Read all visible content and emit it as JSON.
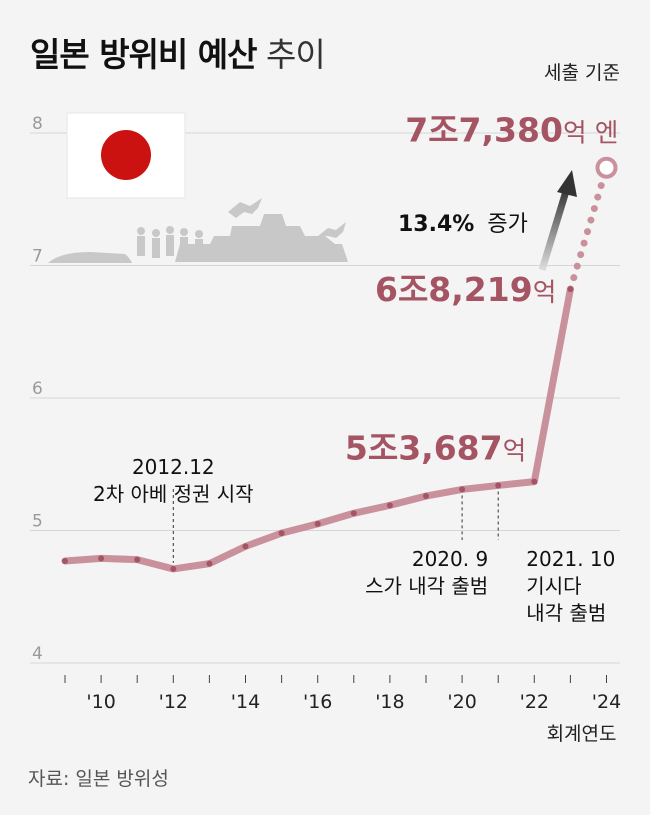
{
  "header": {
    "title_bold": "일본 방위비 예산",
    "title_light": "추이",
    "basis": "세출 기준"
  },
  "source": "자료: 일본 방위성",
  "colors": {
    "line": "#c9919c",
    "marker": "#a55464",
    "value_text": "#a55464",
    "flag_red": "#cc1111"
  },
  "chart_data": {
    "type": "line",
    "title": "일본 방위비 예산 추이",
    "xlabel": "회계연도",
    "ylabel": "",
    "ylim": [
      4,
      8.2
    ],
    "y_ticks": [
      "4",
      "5",
      "6",
      "7",
      "8"
    ],
    "x_tick_labels": [
      "'10",
      "'12",
      "'14",
      "'16",
      "'18",
      "'20",
      "'22",
      "'24"
    ],
    "x_tick_years": [
      2010,
      2012,
      2014,
      2016,
      2018,
      2020,
      2022,
      2024
    ],
    "x": [
      2009,
      2010,
      2011,
      2012,
      2013,
      2014,
      2015,
      2016,
      2017,
      2018,
      2019,
      2020,
      2021,
      2022,
      2023,
      2024
    ],
    "values": [
      4.77,
      4.79,
      4.78,
      4.71,
      4.75,
      4.88,
      4.98,
      5.05,
      5.13,
      5.19,
      5.26,
      5.31,
      5.34,
      5.3687,
      6.8219,
      7.738
    ],
    "projected_from": 2023,
    "grid": true,
    "annotations": [
      {
        "text_lines": [
          "2012.12",
          "2차 아베 정권 시작"
        ],
        "year": 2012
      },
      {
        "text_lines": [
          "2020. 9",
          "스가 내각 출범"
        ],
        "year": 2020
      },
      {
        "text_lines": [
          "2021. 10",
          "기시다",
          "내각 출범"
        ],
        "year": 2021
      }
    ],
    "value_labels": [
      {
        "number": "5조3,687",
        "unit": "억",
        "year": 2022
      },
      {
        "number": "6조8,219",
        "unit": "억",
        "year": 2023
      },
      {
        "number": "7조7,380",
        "unit": "억 엔",
        "year": 2024
      }
    ],
    "growth_label": {
      "pct": "13.4%",
      "text": "증가"
    }
  }
}
